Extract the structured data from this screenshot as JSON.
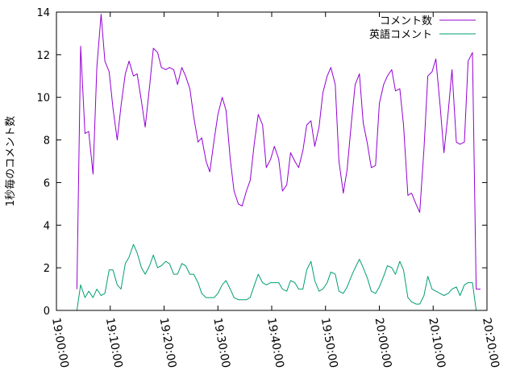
{
  "chart_data": {
    "type": "line",
    "title": "",
    "xlabel": "",
    "ylabel": "1秒毎のコメント数",
    "x_ticks": [
      "19:00:00",
      "19:10:00",
      "19:20:00",
      "19:30:00",
      "19:40:00",
      "19:50:00",
      "20:00:00",
      "20:10:00",
      "20:20:00"
    ],
    "x_tick_minutes": [
      0,
      10,
      20,
      30,
      40,
      50,
      60,
      70,
      80
    ],
    "xlim_minutes": [
      0,
      80
    ],
    "y_ticks": [
      0,
      2,
      4,
      6,
      8,
      10,
      12,
      14
    ],
    "ylim": [
      0,
      14.0
    ],
    "legend_position": "top-right",
    "grid": false,
    "series": [
      {
        "name": "コメント数",
        "color": "#9400d3",
        "x_minutes": [
          3.8,
          4.5,
          5.3,
          6.0,
          6.8,
          7.5,
          8.3,
          9.0,
          9.8,
          10.5,
          11.3,
          12.0,
          12.8,
          13.5,
          14.3,
          15.0,
          15.8,
          16.5,
          17.3,
          18.0,
          18.8,
          19.5,
          20.3,
          21.0,
          21.8,
          22.5,
          23.3,
          24.0,
          24.8,
          25.5,
          26.3,
          27.0,
          27.8,
          28.5,
          29.3,
          30.0,
          30.8,
          31.5,
          32.3,
          33.0,
          33.8,
          34.5,
          35.3,
          36.0,
          36.8,
          37.5,
          38.3,
          39.0,
          39.8,
          40.5,
          41.3,
          42.0,
          42.8,
          43.5,
          44.3,
          45.0,
          45.8,
          46.5,
          47.3,
          48.0,
          48.8,
          49.5,
          50.3,
          51.0,
          51.8,
          52.5,
          53.3,
          54.0,
          54.8,
          55.5,
          56.3,
          57.0,
          57.8,
          58.5,
          59.3,
          60.0,
          60.8,
          61.5,
          62.3,
          63.0,
          63.8,
          64.5,
          65.3,
          66.0,
          66.8,
          67.5,
          68.3,
          69.0,
          69.8,
          70.5,
          71.3,
          72.0,
          72.8,
          73.5,
          74.3,
          75.0
        ],
        "values": [
          1.0,
          12.4,
          8.3,
          8.4,
          6.4,
          11.4,
          13.9,
          11.7,
          11.2,
          9.5,
          8.0,
          9.6,
          11.1,
          11.7,
          11.0,
          11.1,
          9.8,
          8.6,
          10.5,
          12.3,
          12.1,
          11.4,
          11.3,
          11.4,
          11.3,
          10.6,
          11.4,
          11.0,
          10.4,
          9.1,
          7.9,
          8.1,
          7.0,
          6.5,
          8.0,
          9.2,
          10.0,
          9.4,
          7.1,
          5.6,
          5.0,
          4.9,
          5.6,
          6.1,
          7.9,
          9.2,
          8.7,
          6.7,
          7.1,
          7.7,
          7.1,
          5.6,
          5.9,
          7.4,
          7.0,
          6.7,
          7.5,
          8.7,
          8.9,
          7.7,
          8.6,
          10.2,
          11.0,
          11.4,
          10.6,
          7.0,
          5.5,
          6.6,
          8.8,
          10.6,
          11.1,
          8.8,
          7.8,
          6.7,
          6.8,
          9.7,
          10.6,
          11.0,
          11.3,
          10.3,
          10.4,
          8.7,
          5.4,
          5.5,
          5.0,
          4.6,
          7.6,
          11.0,
          11.2,
          11.8,
          9.6,
          7.4,
          9.3,
          11.3,
          7.9,
          7.8
        ],
        "tail": {
          "x_minutes": [
            75.8,
            76.5,
            77.3,
            78.0,
            78.8
          ],
          "values": [
            7.9,
            11.7,
            12.1,
            1.0,
            1.0
          ]
        }
      },
      {
        "name": "英語コメント",
        "color": "#009e73",
        "x_minutes": [
          3.8,
          4.5,
          5.3,
          6.0,
          6.8,
          7.5,
          8.3,
          9.0,
          9.8,
          10.5,
          11.3,
          12.0,
          12.8,
          13.5,
          14.3,
          15.0,
          15.8,
          16.5,
          17.3,
          18.0,
          18.8,
          19.5,
          20.3,
          21.0,
          21.8,
          22.5,
          23.3,
          24.0,
          24.8,
          25.5,
          26.3,
          27.0,
          27.8,
          28.5,
          29.3,
          30.0,
          30.8,
          31.5,
          32.3,
          33.0,
          33.8,
          34.5,
          35.3,
          36.0,
          36.8,
          37.5,
          38.3,
          39.0,
          39.8,
          40.5,
          41.3,
          42.0,
          42.8,
          43.5,
          44.3,
          45.0,
          45.8,
          46.5,
          47.3,
          48.0,
          48.8,
          49.5,
          50.3,
          51.0,
          51.8,
          52.5,
          53.3,
          54.0,
          54.8,
          55.5,
          56.3,
          57.0,
          57.8,
          58.5,
          59.3,
          60.0,
          60.8,
          61.5,
          62.3,
          63.0,
          63.8,
          64.5,
          65.3,
          66.0,
          66.8,
          67.5,
          68.3,
          69.0,
          69.8,
          70.5,
          71.3,
          72.0,
          72.8,
          73.5,
          74.3,
          75.0,
          75.8,
          76.5,
          77.3,
          78.0
        ],
        "values": [
          0.0,
          1.2,
          0.6,
          0.9,
          0.6,
          1.0,
          0.7,
          0.8,
          1.9,
          1.9,
          1.2,
          1.0,
          2.2,
          2.5,
          3.1,
          2.7,
          2.0,
          1.7,
          2.1,
          2.6,
          2.0,
          2.1,
          2.3,
          2.2,
          1.7,
          1.7,
          2.2,
          2.1,
          1.7,
          1.7,
          1.3,
          0.8,
          0.6,
          0.6,
          0.6,
          0.8,
          1.2,
          1.4,
          1.0,
          0.6,
          0.5,
          0.5,
          0.5,
          0.6,
          1.2,
          1.7,
          1.3,
          1.2,
          1.3,
          1.3,
          1.3,
          1.0,
          0.9,
          1.4,
          1.3,
          1.0,
          1.0,
          1.9,
          2.3,
          1.4,
          0.9,
          1.0,
          1.3,
          1.8,
          1.7,
          0.9,
          0.8,
          1.1,
          1.6,
          2.0,
          2.4,
          2.0,
          1.5,
          0.9,
          0.8,
          1.1,
          1.6,
          2.1,
          2.0,
          1.7,
          2.3,
          1.9,
          0.6,
          0.4,
          0.3,
          0.3,
          0.7,
          1.6,
          1.0,
          0.9,
          0.8,
          0.7,
          0.8,
          1.0,
          1.1,
          0.7,
          1.2,
          1.3,
          1.3,
          0.0
        ]
      }
    ]
  }
}
